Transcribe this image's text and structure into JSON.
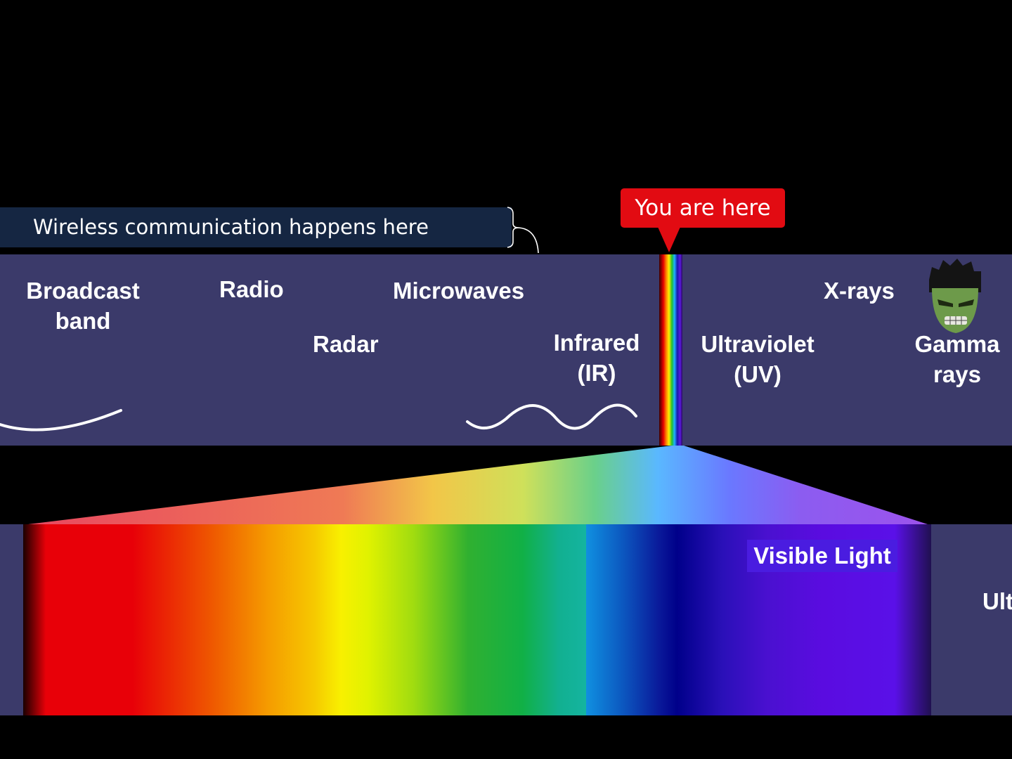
{
  "callout": "You are here",
  "wireless": "Wireless communication happens here",
  "bands": {
    "broadcast": "Broadcast\nband",
    "radio": "Radio",
    "radar": "Radar",
    "microwaves": "Microwaves",
    "infrared": "Infrared\n(IR)",
    "ultraviolet": "Ultraviolet\n(UV)",
    "xrays": "X-rays",
    "gamma": "Gamma\nrays"
  },
  "visible_light": "Visible Light",
  "cut_label": "Ult",
  "colors": {
    "band_bg": "#3b3a6a",
    "callout_bg": "#e20b12",
    "wireless_bg": "#152642",
    "hulk_skin": "#6d9a4a"
  },
  "icons": [
    "hulk-face-icon",
    "long-wave-icon",
    "short-wave-icon"
  ]
}
